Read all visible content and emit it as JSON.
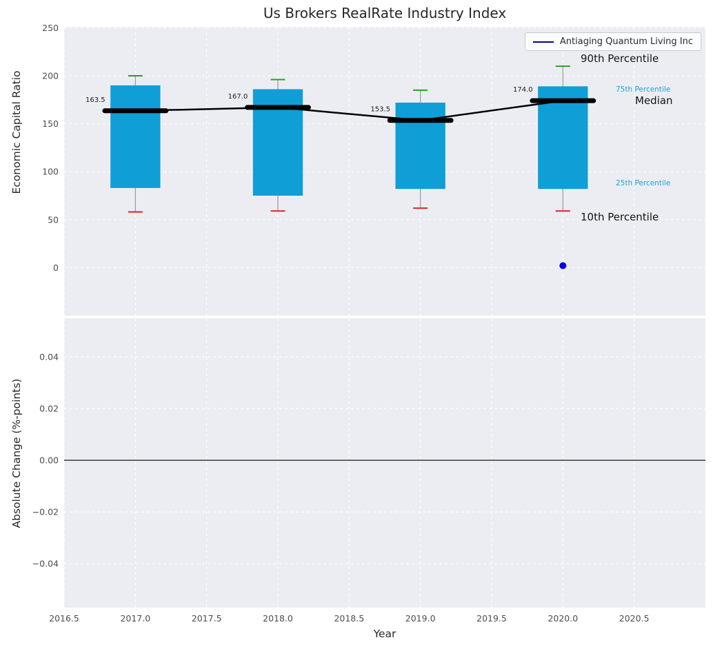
{
  "colors": {
    "box_fill": "#0f9ed6",
    "median_line": "#000000",
    "whisker": "#999999",
    "cap_top": "#22a022",
    "cap_bottom": "#dd2222",
    "company_line": "#00008b",
    "company_dot": "#0000ee",
    "accent_text": "#1ba3cf",
    "plot_bg": "#ecedf2",
    "grid": "#ffffff",
    "zero_line": "#000000",
    "tick_label": "#4c4c4c"
  },
  "chart_data": [
    {
      "type": "boxplot",
      "title": "Us Brokers RealRate Industry Index",
      "ylabel": "Economic Capital Ratio",
      "ylim": [
        -50,
        251
      ],
      "yticks": [
        0,
        50,
        100,
        150,
        200,
        250
      ],
      "ytick_labels": [
        "0",
        "50",
        "100",
        "150",
        "200",
        "250"
      ],
      "xlim": [
        2016.5,
        2021.0
      ],
      "xticks": [
        2016.5,
        2017.0,
        2017.5,
        2018.0,
        2018.5,
        2019.0,
        2019.5,
        2020.0,
        2020.5
      ],
      "xtick_labels": [
        "2016.5",
        "2017.0",
        "2017.5",
        "2018.0",
        "2018.5",
        "2019.0",
        "2019.5",
        "2020.0",
        "2020.5"
      ],
      "grid": "dashed",
      "boxes": [
        {
          "year": 2017,
          "p10": 58,
          "p25": 83,
          "median": 163.5,
          "p75": 190,
          "p90": 200,
          "median_label": "163.5"
        },
        {
          "year": 2018,
          "p10": 59,
          "p25": 75,
          "median": 167.0,
          "p75": 186,
          "p90": 196,
          "median_label": "167.0"
        },
        {
          "year": 2019,
          "p10": 62,
          "p25": 82,
          "median": 153.5,
          "p75": 172,
          "p90": 185,
          "median_label": "153.5"
        },
        {
          "year": 2020,
          "p10": 59,
          "p25": 82,
          "median": 174.0,
          "p75": 189,
          "p90": 210,
          "median_label": "174.0"
        }
      ],
      "company": {
        "name": "Antiaging Quantum Living Inc",
        "points": [
          {
            "x": 2020,
            "y": 2
          }
        ]
      },
      "legend": {
        "label": "Antiaging Quantum Living Inc",
        "position": "upper right"
      },
      "annotations": {
        "p90": "90th Percentile",
        "p75": "75th Percentile",
        "median": "Median",
        "p25": "25th Percentile",
        "p10": "10th Percentile"
      }
    },
    {
      "type": "line",
      "ylabel": "Absolute Change (%-points)",
      "xlabel": "Year",
      "ylim": [
        -0.057,
        0.0549
      ],
      "yticks": [
        0.04,
        0.02,
        0.0,
        -0.02,
        -0.04
      ],
      "ytick_labels": [
        "0.04",
        "0.02",
        "0.00",
        "−0.02",
        "−0.04"
      ],
      "x_shared": true,
      "zero_line": true,
      "series": []
    }
  ]
}
